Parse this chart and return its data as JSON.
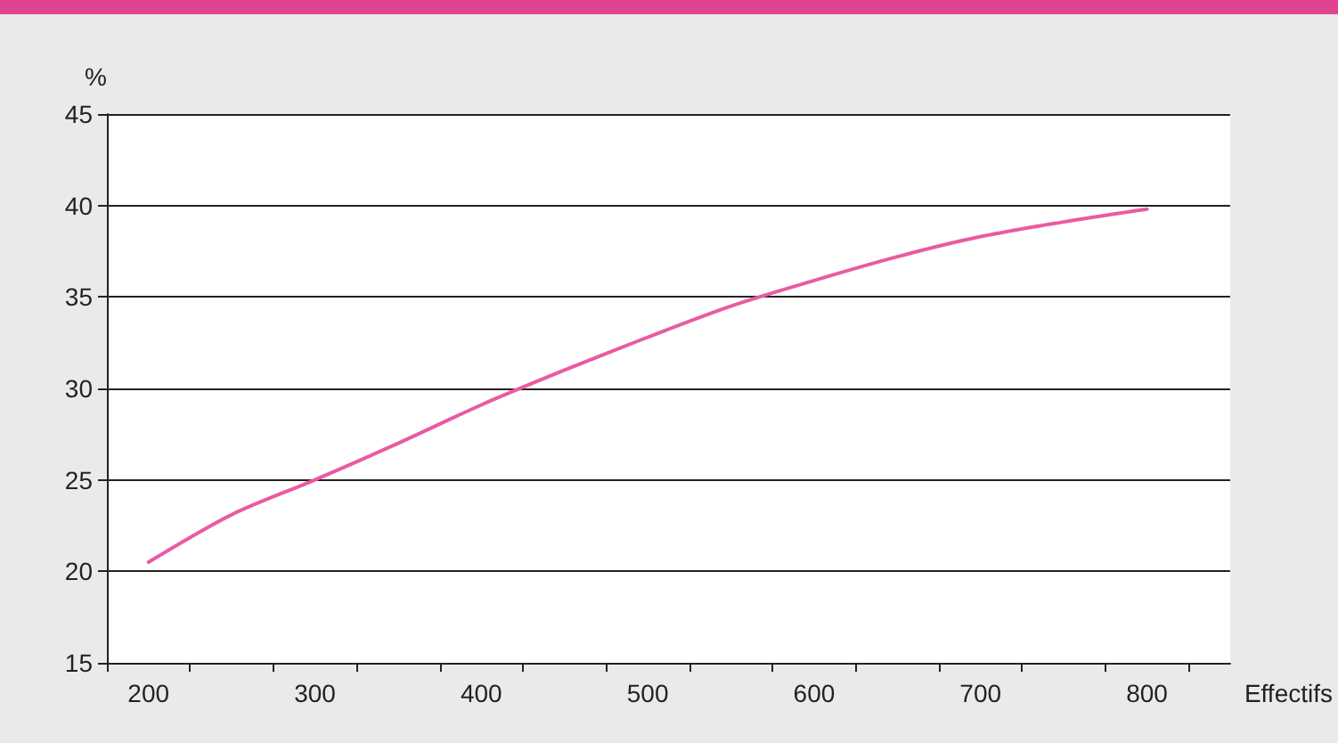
{
  "chart_data": {
    "type": "line",
    "xlabel": "Effectifs",
    "ylabel": "%",
    "x": [
      200,
      250,
      300,
      350,
      400,
      450,
      500,
      550,
      600,
      650,
      700,
      750,
      800
    ],
    "series": [
      {
        "color": "#ea5aa3",
        "values": [
          20.5,
          23.1,
          25.0,
          27.0,
          29.1,
          31.0,
          32.8,
          34.5,
          35.9,
          37.2,
          38.3,
          39.1,
          39.8
        ]
      }
    ],
    "xlim": [
      175,
      850
    ],
    "xticks": [
      {
        "value": 175,
        "label": null
      },
      200,
      {
        "value": 225,
        "label": null
      },
      {
        "value": 275,
        "label": null
      },
      300,
      {
        "value": 325,
        "label": null
      },
      {
        "value": 375,
        "label": null
      },
      400,
      {
        "value": 425,
        "label": null
      },
      {
        "value": 475,
        "label": null
      },
      500,
      {
        "value": 525,
        "label": null
      },
      {
        "value": 575,
        "label": null
      },
      600,
      {
        "value": 625,
        "label": null
      },
      {
        "value": 675,
        "label": null
      },
      700,
      {
        "value": 725,
        "label": null
      },
      {
        "value": 775,
        "label": null
      },
      800,
      {
        "value": 825,
        "label": null
      }
    ],
    "ylim": [
      15,
      45
    ],
    "yticks": [
      15,
      20,
      25,
      30,
      35,
      40,
      45
    ],
    "grid": "y",
    "marker": "none",
    "line_style": "solid"
  }
}
